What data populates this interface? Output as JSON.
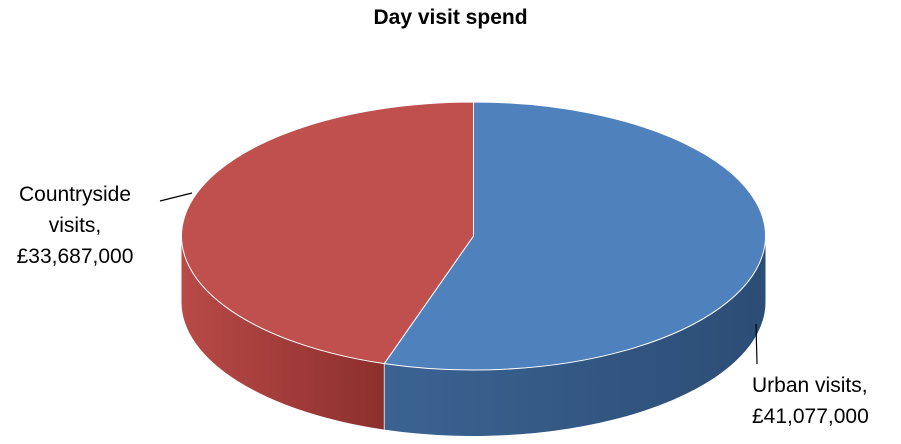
{
  "chart_data": {
    "type": "pie",
    "title": "Day visit spend",
    "slices": [
      {
        "name": "Urban visits",
        "value": 41077000,
        "label_lines": [
          "Urban visits,",
          "£41,077,000"
        ],
        "color": "#4f81bd",
        "side_color": "#2c4d75",
        "side_highlight": "#3b6392"
      },
      {
        "name": "Countryside visits",
        "value": 33687000,
        "label_lines": [
          "Countryside",
          "visits,",
          "£33,687,000"
        ],
        "color": "#c0504d",
        "side_color": "#8c2f2d",
        "side_highlight": "#b84a47"
      }
    ],
    "style": "3d"
  }
}
